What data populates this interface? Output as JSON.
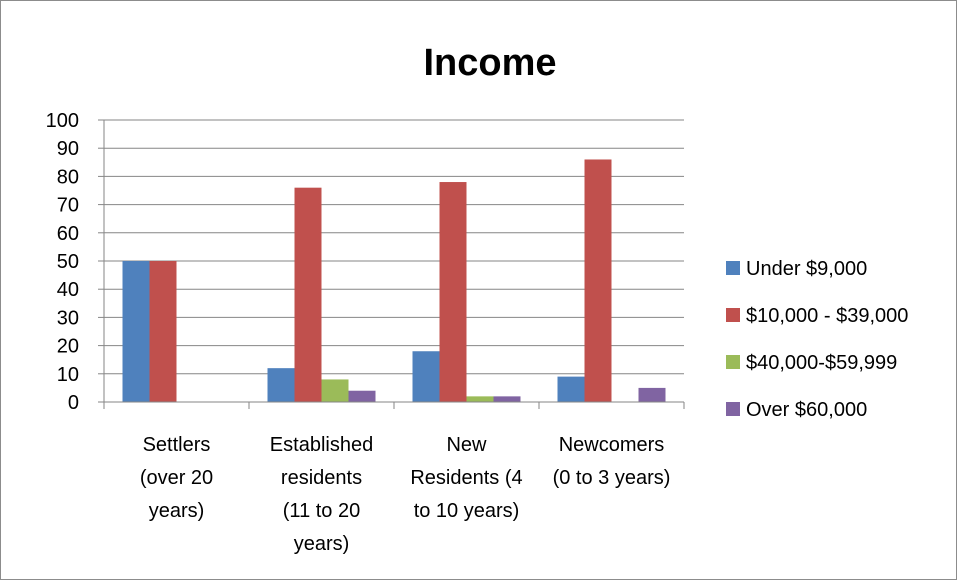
{
  "chart_data": {
    "type": "bar",
    "title": "Income",
    "xlabel": "",
    "ylabel": "",
    "ylim": [
      0,
      100
    ],
    "yticks": [
      "0",
      "10",
      "20",
      "30",
      "40",
      "50",
      "60",
      "70",
      "80",
      "90",
      "100"
    ],
    "grid": true,
    "legend_position": "right",
    "categories": [
      [
        "Settlers",
        "(over 20",
        "years)"
      ],
      [
        "Established",
        "residents",
        "(11 to 20",
        "years)"
      ],
      [
        "New",
        "Residents (4",
        "to 10 years)"
      ],
      [
        "Newcomers",
        "(0 to 3 years)"
      ]
    ],
    "series": [
      {
        "name": "Under $9,000",
        "color": "#4f81bd",
        "values": [
          50,
          12,
          18,
          9
        ]
      },
      {
        "name": "$10,000 - $39,000",
        "color": "#c0504d",
        "values": [
          50,
          76,
          78,
          86
        ]
      },
      {
        "name": "$40,000-$59,999",
        "color": "#9bbb59",
        "values": [
          0,
          8,
          2,
          0
        ]
      },
      {
        "name": "Over $60,000",
        "color": "#8064a2",
        "values": [
          0,
          4,
          2,
          5
        ]
      }
    ]
  }
}
